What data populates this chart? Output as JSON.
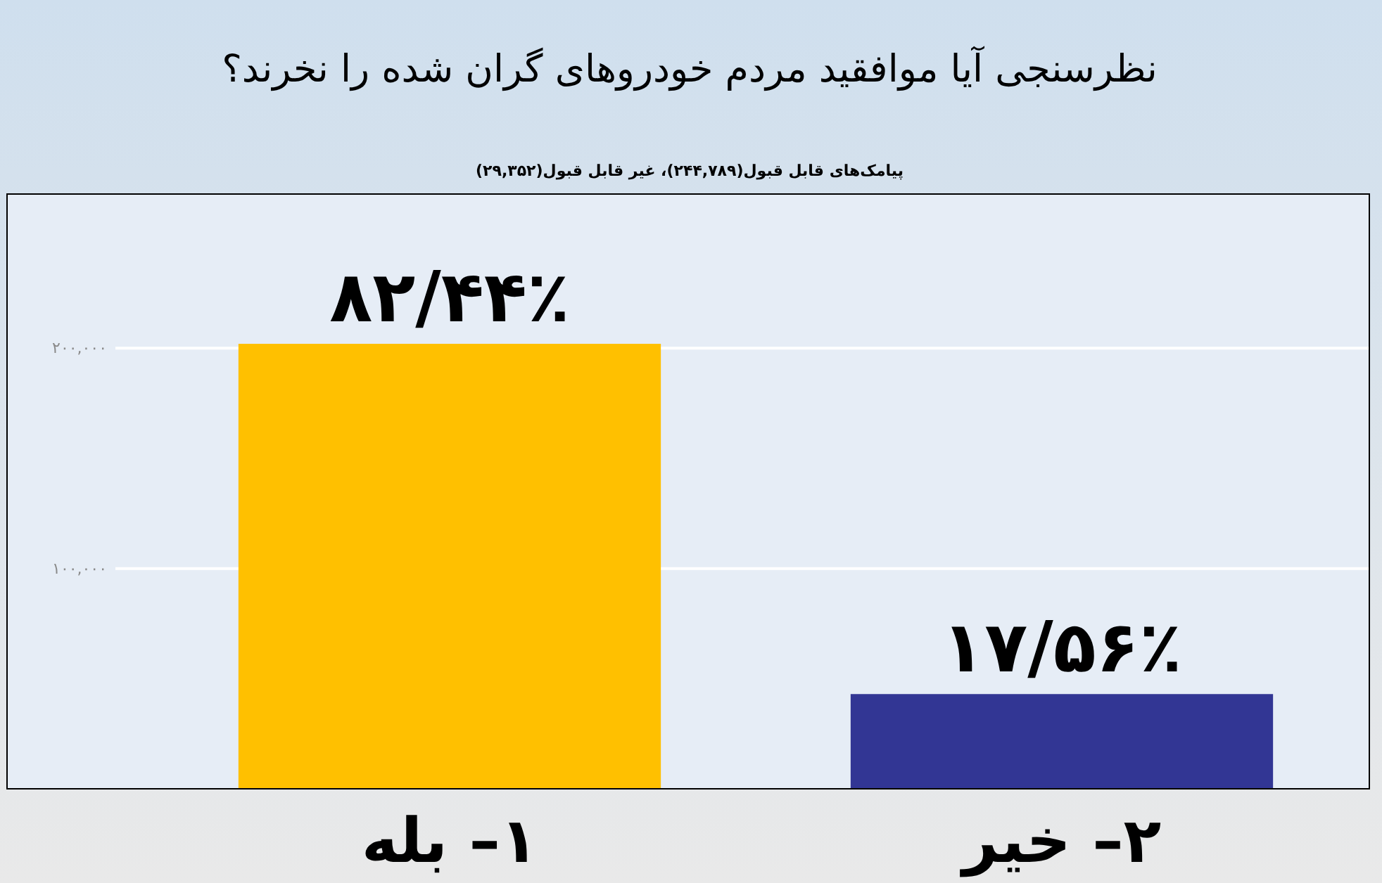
{
  "chart_data": {
    "type": "bar",
    "title": "نظرسنجی آیا موافقید مردم خودروهای گران شده را نخرند؟",
    "subtitle": "پیامک‌های قابل قبول(۲۴۴,۷۸۹)، غیر قابل قبول(۲۹,۳۵۲)",
    "categories": [
      "۱– بله",
      "۲– خیر"
    ],
    "values": [
      202000,
      43000
    ],
    "colors": [
      "#ffc000",
      "#323694"
    ],
    "value_labels": [
      "۸۲/۴۴٪",
      "۱۷/۵۶٪"
    ],
    "ylim": [
      0,
      270000
    ],
    "yticks": [
      {
        "value": 100000,
        "label": "۱۰۰,۰۰۰"
      },
      {
        "value": 200000,
        "label": "۲۰۰,۰۰۰"
      }
    ],
    "grid": "y"
  }
}
